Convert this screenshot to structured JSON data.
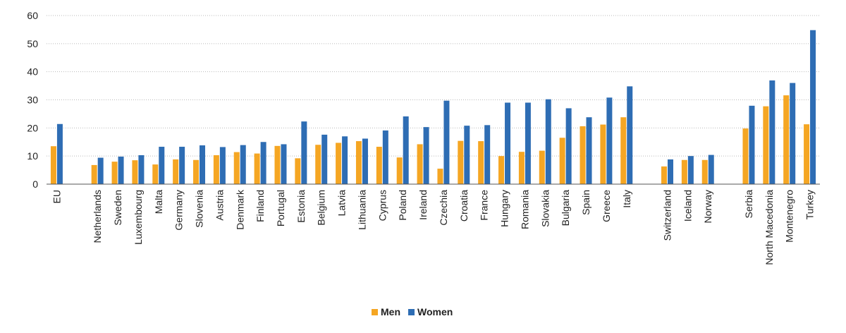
{
  "chart_data": {
    "type": "bar",
    "title": "",
    "xlabel": "",
    "ylabel": "",
    "ylim": [
      0,
      60
    ],
    "yticks": [
      0,
      10,
      20,
      30,
      40,
      50,
      60
    ],
    "grid": true,
    "legend_position": "bottom-center",
    "categories": [
      "EU",
      "",
      "Netherlands",
      "Sweden",
      "Luxembourg",
      "Malta",
      "Germany",
      "Slovenia",
      "Austria",
      "Denmark",
      "Finland",
      "Portugal",
      "Estonia",
      "Belgium",
      "Latvia",
      "Lithuania",
      "Cyprus",
      "Poland",
      "Ireland",
      "Czechia",
      "Croatia",
      "France",
      "Hungary",
      "Romania",
      "Slovakia",
      "Bulgaria",
      "Spain",
      "Greece",
      "Italy",
      "",
      "Switzerland",
      "Iceland",
      "Norway",
      "",
      "Serbia",
      "North Macedonia",
      "Montenegro",
      "Turkey"
    ],
    "series": [
      {
        "name": "Men",
        "color": "#f5a623",
        "values": [
          13.5,
          null,
          6.8,
          8.0,
          8.5,
          7.0,
          8.8,
          8.6,
          10.3,
          11.4,
          10.9,
          13.6,
          9.2,
          14.0,
          14.7,
          15.3,
          13.3,
          9.5,
          14.2,
          5.5,
          15.4,
          15.3,
          10.0,
          11.5,
          11.9,
          16.5,
          20.6,
          21.2,
          23.8,
          null,
          6.3,
          8.6,
          8.6,
          null,
          19.8,
          27.7,
          31.6,
          21.3
        ]
      },
      {
        "name": "Women",
        "color": "#2e6db4",
        "values": [
          21.4,
          null,
          9.4,
          9.8,
          10.3,
          13.3,
          13.3,
          13.8,
          13.2,
          13.9,
          15.0,
          14.2,
          22.3,
          17.6,
          17.0,
          16.2,
          19.1,
          24.1,
          20.3,
          29.7,
          20.8,
          21.0,
          29.0,
          29.0,
          30.2,
          27.0,
          23.8,
          30.8,
          34.8,
          null,
          8.8,
          10.0,
          10.4,
          null,
          27.9,
          36.9,
          36.0,
          54.8
        ]
      }
    ]
  }
}
